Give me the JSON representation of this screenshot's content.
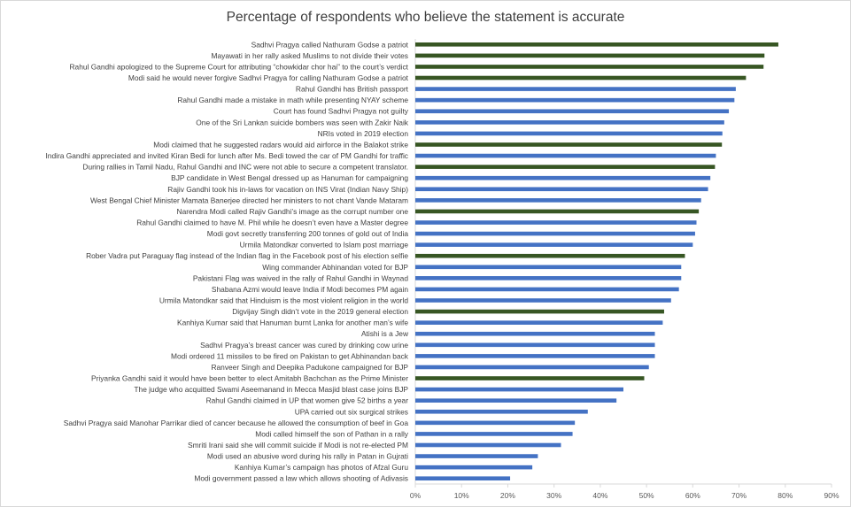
{
  "chart_data": {
    "type": "bar",
    "orientation": "horizontal",
    "title": "Percentage of respondents who believe the statement is accurate",
    "xlim": [
      0,
      90
    ],
    "ticks": [
      "0%",
      "10%",
      "20%",
      "30%",
      "40%",
      "50%",
      "60%",
      "70%",
      "80%",
      "90%"
    ],
    "grid": false,
    "legend": "none",
    "colors": {
      "blue": "#4472c4",
      "green": "#375623",
      "text": "#404040",
      "axis": "#d9d9d9"
    },
    "bars": [
      {
        "label": "Sadhvi Pragya called Nathuram Godse a patriot",
        "value": 78.5,
        "color": "green"
      },
      {
        "label": "Mayawati in her rally asked Muslims to not divide their votes",
        "value": 75.5,
        "color": "green"
      },
      {
        "label": "Rahul Gandhi apologized to the Supreme Court for attributing “chowkidar chor hai” to the court’s verdict",
        "value": 75.3,
        "color": "green"
      },
      {
        "label": "Modi said he would never forgive Sadhvi Pragya for calling Nathuram Godse a patriot",
        "value": 71.5,
        "color": "green"
      },
      {
        "label": "Rahul Gandhi has British passport",
        "value": 69.3,
        "color": "blue"
      },
      {
        "label": "Rahul Gandhi made a mistake in math while presenting NYAY scheme",
        "value": 69.0,
        "color": "blue"
      },
      {
        "label": "Court has found Sadhvi Pragya not guilty",
        "value": 67.8,
        "color": "blue"
      },
      {
        "label": "One of the Sri Lankan suicide bombers was seen with Zakir Naik",
        "value": 66.8,
        "color": "blue"
      },
      {
        "label": "NRIs voted in 2019 election",
        "value": 66.4,
        "color": "blue"
      },
      {
        "label": "Modi claimed that he suggested radars would aid airforce in the Balakot strike",
        "value": 66.3,
        "color": "green"
      },
      {
        "label": "Indira Gandhi appreciated and invited Kiran Bedi for lunch after Ms. Bedi towed the car of PM Gandhi for traffic",
        "value": 65.0,
        "color": "blue"
      },
      {
        "label": "During rallies in Tamil Nadu, Rahul Gandhi and INC were not able to secure a competent translator.",
        "value": 64.8,
        "color": "green"
      },
      {
        "label": "BJP candidate in West Bengal dressed up as Hanuman for campaigning",
        "value": 63.8,
        "color": "blue"
      },
      {
        "label": "Rajiv Gandhi took his in-laws for vacation on INS Virat (Indian Navy Ship)",
        "value": 63.3,
        "color": "blue"
      },
      {
        "label": "West Bengal Chief Minister Mamata Banerjee directed her ministers to not chant Vande Mataram",
        "value": 61.8,
        "color": "blue"
      },
      {
        "label": "Narendra Modi called Rajiv Gandhi’s image as the corrupt number one",
        "value": 61.3,
        "color": "green"
      },
      {
        "label": "Rahul Gandhi claimed to have M. Phil while he doesn’t even have a Master degree",
        "value": 60.8,
        "color": "blue"
      },
      {
        "label": "Modi govt secretly transferring 200 tonnes of gold out of India",
        "value": 60.5,
        "color": "blue"
      },
      {
        "label": "Urmila Matondkar converted to Islam post marriage",
        "value": 60.0,
        "color": "blue"
      },
      {
        "label": "Rober Vadra put Paraguay flag instead of the Indian flag in the Facebook post of his election selfie",
        "value": 58.3,
        "color": "green"
      },
      {
        "label": "Wing commander Abhinandan voted for BJP",
        "value": 57.5,
        "color": "blue"
      },
      {
        "label": "Pakistani Flag was waived in the rally of Rahul Gandhi in Waynad",
        "value": 57.5,
        "color": "blue"
      },
      {
        "label": "Shabana Azmi would leave India if Modi becomes PM again",
        "value": 57.0,
        "color": "blue"
      },
      {
        "label": "Urmila Matondkar said that Hinduism is the most violent religion in the world",
        "value": 55.3,
        "color": "blue"
      },
      {
        "label": "Digvijay Singh didn’t vote in the 2019 general election",
        "value": 53.8,
        "color": "green"
      },
      {
        "label": "Kanhiya Kumar said that Hanuman burnt Lanka for another man’s wife",
        "value": 53.5,
        "color": "blue"
      },
      {
        "label": "Atishi is a Jew",
        "value": 51.8,
        "color": "blue"
      },
      {
        "label": "Sadhvi Pragya’s breast cancer was cured by drinking cow urine",
        "value": 51.8,
        "color": "blue"
      },
      {
        "label": "Modi ordered 11 missiles to be fired on Pakistan to get Abhinandan back",
        "value": 51.8,
        "color": "blue"
      },
      {
        "label": "Ranveer Singh and Deepika Padukone campaigned for BJP",
        "value": 50.5,
        "color": "blue"
      },
      {
        "label": "Priyanka Gandhi said it would have been better to elect Amitabh Bachchan as the Prime Minister",
        "value": 49.5,
        "color": "green"
      },
      {
        "label": "The judge who acquitted Swami Aseemanand in Mecca Masjid blast case joins BJP",
        "value": 45.0,
        "color": "blue"
      },
      {
        "label": "Rahul Gandhi claimed in UP that women give 52 births a year",
        "value": 43.5,
        "color": "blue"
      },
      {
        "label": "UPA carried out six surgical strikes",
        "value": 37.3,
        "color": "blue"
      },
      {
        "label": "Sadhvi Pragya said Manohar Parrikar died of cancer because he allowed the consumption of beef in Goa",
        "value": 34.5,
        "color": "blue"
      },
      {
        "label": "Modi called himself the son of Pathan in a rally",
        "value": 34.0,
        "color": "blue"
      },
      {
        "label": "Smriti Irani said she will commit suicide if Modi is not re-elected PM",
        "value": 31.5,
        "color": "blue"
      },
      {
        "label": "Modi used an abusive word during his rally in Patan in Gujrati",
        "value": 26.5,
        "color": "blue"
      },
      {
        "label": "Kanhiya Kumar’s campaign has photos of Afzal Guru",
        "value": 25.3,
        "color": "blue"
      },
      {
        "label": "Modi government passed a law which allows shooting of Adivasis",
        "value": 20.5,
        "color": "blue"
      }
    ]
  }
}
